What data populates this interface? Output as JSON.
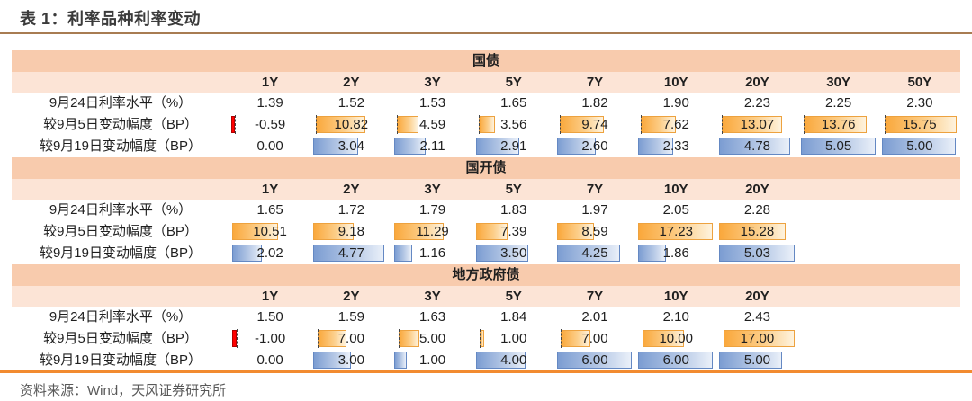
{
  "page": {
    "title": "表 1：利率品种利率变动",
    "source": "资料来源：Wind，天风证券研究所"
  },
  "colors": {
    "title_text": "#3b3b3b",
    "body_text": "#1f1f1f",
    "source_text": "#595959",
    "top_rule": "#a87c52",
    "bottom_rule": "#f28b30",
    "section_header_bg": "#f8cbad",
    "column_header_bg": "#fce4d6",
    "orange_bar_start": "#faa83c",
    "orange_bar_end": "#fef3de",
    "orange_bar_border": "#eda23f",
    "blue_bar_start": "#7c9dd2",
    "blue_bar_end": "#eaf0f9",
    "blue_bar_border": "#6488c3",
    "negative_bar": "#ff0000",
    "negative_bar_border": "#b00000",
    "axis_line": "#444444"
  },
  "table": {
    "columns": [
      "1Y",
      "2Y",
      "3Y",
      "5Y",
      "7Y",
      "10Y",
      "20Y",
      "30Y",
      "50Y"
    ],
    "sections": [
      {
        "name": "国债",
        "columns": [
          "1Y",
          "2Y",
          "3Y",
          "5Y",
          "7Y",
          "10Y",
          "20Y",
          "30Y",
          "50Y"
        ],
        "rows": [
          {
            "label": "9月24日利率水平（%）",
            "style": "plain",
            "values": [
              1.39,
              1.52,
              1.53,
              1.65,
              1.82,
              1.9,
              2.23,
              2.25,
              2.3
            ]
          },
          {
            "label": "较9月5日变动幅度（BP）",
            "style": "bar-orange",
            "values": [
              -0.59,
              10.82,
              4.59,
              3.56,
              9.74,
              7.62,
              13.07,
              13.76,
              15.75
            ]
          },
          {
            "label": "较9月19日变动幅度（BP）",
            "style": "bar-blue",
            "values": [
              0.0,
              3.04,
              2.11,
              2.91,
              2.6,
              2.33,
              4.78,
              5.05,
              5.0
            ]
          }
        ]
      },
      {
        "name": "国开债",
        "columns": [
          "1Y",
          "2Y",
          "3Y",
          "5Y",
          "7Y",
          "10Y",
          "20Y"
        ],
        "rows": [
          {
            "label": "9月24日利率水平（%）",
            "style": "plain",
            "values": [
              1.65,
              1.72,
              1.79,
              1.83,
              1.97,
              2.05,
              2.28
            ]
          },
          {
            "label": "较9月5日变动幅度（BP）",
            "style": "bar-orange",
            "values": [
              10.51,
              9.18,
              11.29,
              7.39,
              8.59,
              17.23,
              15.28
            ]
          },
          {
            "label": "较9月19日变动幅度（BP）",
            "style": "bar-blue",
            "values": [
              2.02,
              4.77,
              1.16,
              3.5,
              4.25,
              1.86,
              5.03
            ]
          }
        ]
      },
      {
        "name": "地方政府债",
        "columns": [
          "1Y",
          "2Y",
          "3Y",
          "5Y",
          "7Y",
          "10Y",
          "20Y"
        ],
        "rows": [
          {
            "label": "9月24日利率水平（%）",
            "style": "plain",
            "values": [
              1.5,
              1.59,
              1.63,
              1.84,
              2.01,
              2.1,
              2.43
            ]
          },
          {
            "label": "较9月5日变动幅度（BP）",
            "style": "bar-orange",
            "values": [
              -1.0,
              7.0,
              5.0,
              1.0,
              7.0,
              10.0,
              17.0
            ]
          },
          {
            "label": "较9月19日变动幅度（BP）",
            "style": "bar-blue",
            "values": [
              0.0,
              3.0,
              1.0,
              4.0,
              6.0,
              6.0,
              5.0
            ]
          }
        ]
      }
    ]
  }
}
